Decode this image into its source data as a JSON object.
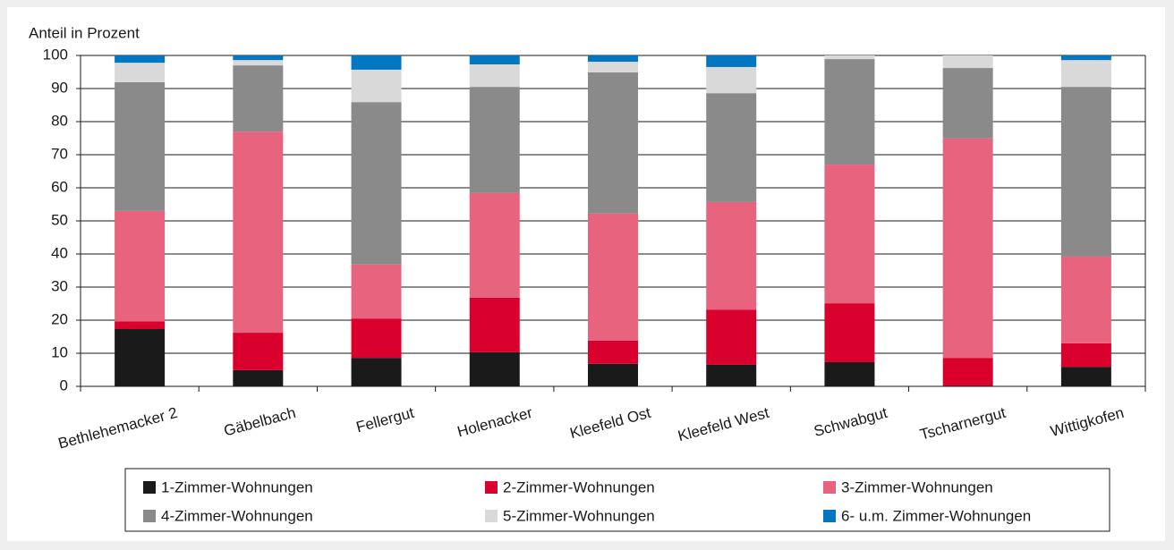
{
  "chart_data": {
    "type": "stacked_bar",
    "y_label": "Anteil in Prozent",
    "categories": [
      "Bethlehemacker 2",
      "Gäbelbach",
      "Fellergut",
      "Holenacker",
      "Kleefeld Ost",
      "Kleefeld West",
      "Schwabgut",
      "Tscharnergut",
      "Wittigkofen"
    ],
    "series": [
      {
        "name": "1-Zimmer-Wohnungen",
        "color": "#1a1a1a",
        "values": [
          17.3,
          4.9,
          8.6,
          10.3,
          6.8,
          6.5,
          7.3,
          0,
          5.9
        ]
      },
      {
        "name": "2-Zimmer-Wohnungen",
        "color": "#d9002d",
        "values": [
          2.3,
          11.3,
          11.9,
          16.5,
          7.0,
          16.7,
          17.8,
          8.6,
          7.1
        ]
      },
      {
        "name": "3-Zimmer-Wohnungen",
        "color": "#e8637e",
        "values": [
          33.4,
          60.8,
          16.3,
          31.6,
          38.4,
          32.5,
          41.9,
          66.3,
          26.2
        ]
      },
      {
        "name": "4-Zimmer-Wohnungen",
        "color": "#8a8a8a",
        "values": [
          38.9,
          20.0,
          49.1,
          32.1,
          42.7,
          32.9,
          31.9,
          21.3,
          51.3
        ]
      },
      {
        "name": "5-Zimmer-Wohnungen",
        "color": "#d9d9d9",
        "values": [
          5.9,
          1.6,
          9.8,
          6.8,
          3.2,
          7.9,
          1.1,
          3.8,
          8.1
        ]
      },
      {
        "name": "6- u.m. Zimmer-Wohnungen",
        "color": "#0077c0",
        "values": [
          2.2,
          1.4,
          4.3,
          2.7,
          1.9,
          3.5,
          0,
          0,
          1.4
        ]
      }
    ],
    "ylim": [
      0,
      100
    ],
    "yticks": [
      0,
      10,
      20,
      30,
      40,
      50,
      60,
      70,
      80,
      90,
      100
    ],
    "grid": true
  }
}
